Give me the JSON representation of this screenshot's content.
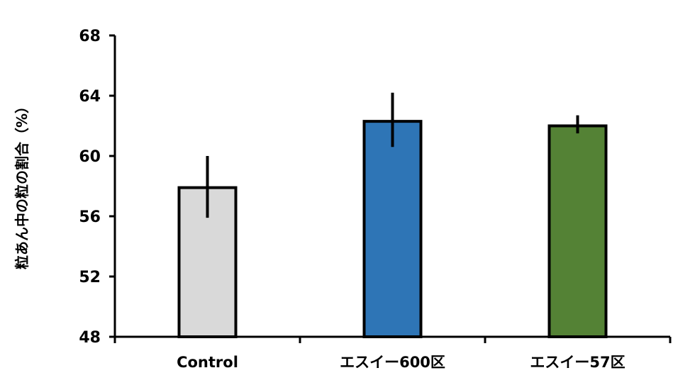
{
  "chart_data": {
    "type": "bar",
    "title": "",
    "xlabel": "",
    "ylabel": "粒あん中の粒の割合（%）",
    "ylim": [
      48,
      68
    ],
    "yticks": [
      48,
      52,
      56,
      60,
      64,
      68
    ],
    "categories": [
      "Control",
      "エスイー600区",
      "エスイー57区"
    ],
    "values": [
      57.9,
      62.3,
      62.0
    ],
    "error_low": [
      55.9,
      60.6,
      61.5
    ],
    "error_high": [
      60.0,
      64.2,
      62.7
    ],
    "colors": [
      "#d9d9d9",
      "#2e75b6",
      "#548235"
    ],
    "grid": false,
    "legend": "none"
  }
}
